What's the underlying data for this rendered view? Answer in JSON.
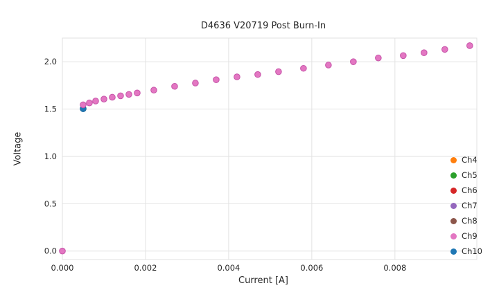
{
  "title": "D4636 V20719 Post Burn-In",
  "chart_data": {
    "type": "scatter",
    "title": "D4636 V20719 Post Burn-In",
    "xlabel": "Current [A]",
    "ylabel": "Voltage",
    "xlim": [
      0,
      0.00997
    ],
    "ylim": [
      -0.09,
      2.25
    ],
    "x_ticks": [
      0.0,
      0.002,
      0.004,
      0.006,
      0.008
    ],
    "x_tick_labels": [
      "0.000",
      "0.002",
      "0.004",
      "0.006",
      "0.008"
    ],
    "y_ticks": [
      0.0,
      0.5,
      1.0,
      1.5,
      2.0
    ],
    "y_tick_labels": [
      "0.0",
      "0.5",
      "1.0",
      "1.5",
      "2.0"
    ],
    "grid": true,
    "grid_color": "#e2e2e2",
    "frame_color": "#e0e0e0",
    "legend_position": "lower right",
    "legend": [
      {
        "label": "Ch4",
        "color": "#ff7f0e"
      },
      {
        "label": "Ch5",
        "color": "#2ca02c"
      },
      {
        "label": "Ch6",
        "color": "#d62728"
      },
      {
        "label": "Ch7",
        "color": "#9467bd"
      },
      {
        "label": "Ch8",
        "color": "#8c564b"
      },
      {
        "label": "Ch9",
        "color": "#e377c2"
      },
      {
        "label": "Ch10",
        "color": "#1f77b4"
      }
    ],
    "series": [
      {
        "name": "Ch10",
        "color": "#1f77b4",
        "edge": "#19679c",
        "points": [
          [
            0.0005,
            1.503
          ]
        ]
      },
      {
        "name": "Ch9",
        "color": "#e377c2",
        "edge": "#c653a8",
        "points": [
          [
            0.0,
            0.0
          ],
          [
            0.0005,
            1.545
          ],
          [
            0.00065,
            1.565
          ],
          [
            0.0008,
            1.585
          ],
          [
            0.001,
            1.605
          ],
          [
            0.0012,
            1.625
          ],
          [
            0.0014,
            1.64
          ],
          [
            0.0016,
            1.655
          ],
          [
            0.0018,
            1.67
          ],
          [
            0.0022,
            1.7
          ],
          [
            0.0027,
            1.74
          ],
          [
            0.0032,
            1.775
          ],
          [
            0.0037,
            1.81
          ],
          [
            0.0042,
            1.84
          ],
          [
            0.0047,
            1.865
          ],
          [
            0.0052,
            1.895
          ],
          [
            0.0058,
            1.93
          ],
          [
            0.0064,
            1.965
          ],
          [
            0.007,
            2.0
          ],
          [
            0.0076,
            2.04
          ],
          [
            0.0082,
            2.065
          ],
          [
            0.0087,
            2.095
          ],
          [
            0.0092,
            2.13
          ],
          [
            0.0098,
            2.17
          ]
        ]
      }
    ]
  }
}
